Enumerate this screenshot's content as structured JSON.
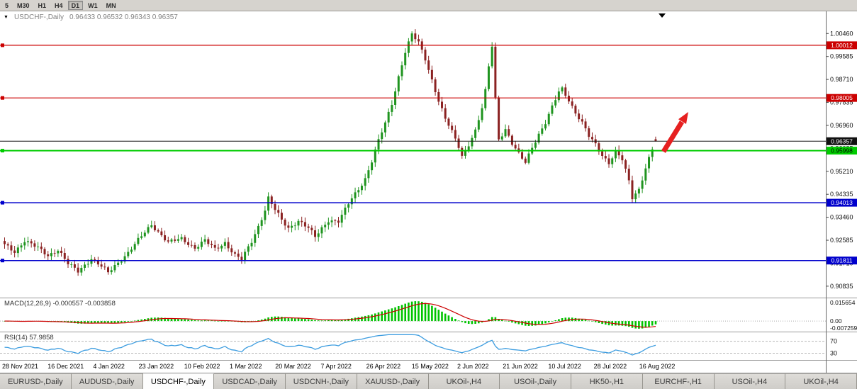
{
  "toolbar": {
    "timeframes": [
      {
        "label": "5",
        "active": false
      },
      {
        "label": "M30",
        "active": false
      },
      {
        "label": "H1",
        "active": false
      },
      {
        "label": "H4",
        "active": false
      },
      {
        "label": "D1",
        "active": true
      },
      {
        "label": "W1",
        "active": false
      },
      {
        "label": "MN",
        "active": false
      }
    ]
  },
  "chart": {
    "symbol": "USDCHF-,Daily",
    "ohlc_text": "0.96433 0.96532 0.96343 0.96357"
  },
  "chart_data": {
    "type": "candlestick",
    "symbol": "USDCHF-,Daily",
    "timeframe": "Daily",
    "last_ohlc": {
      "open": 0.96433,
      "high": 0.96532,
      "low": 0.96343,
      "close": 0.96357
    },
    "total_candles": 196,
    "y_range": [
      0.904,
      1.0125
    ],
    "close_path": [
      [
        0,
        0.924
      ],
      [
        3,
        0.9215
      ],
      [
        6,
        0.9258
      ],
      [
        10,
        0.9228
      ],
      [
        13,
        0.92
      ],
      [
        16,
        0.9224
      ],
      [
        19,
        0.9168
      ],
      [
        22,
        0.914
      ],
      [
        26,
        0.919
      ],
      [
        29,
        0.9158
      ],
      [
        31,
        0.9134
      ],
      [
        34,
        0.9174
      ],
      [
        37,
        0.9212
      ],
      [
        40,
        0.9258
      ],
      [
        44,
        0.9318
      ],
      [
        46,
        0.9292
      ],
      [
        49,
        0.925
      ],
      [
        53,
        0.9264
      ],
      [
        57,
        0.923
      ],
      [
        60,
        0.9257
      ],
      [
        63,
        0.9224
      ],
      [
        66,
        0.925
      ],
      [
        69,
        0.9202
      ],
      [
        71,
        0.9184
      ],
      [
        74,
        0.9254
      ],
      [
        76,
        0.9312
      ],
      [
        78,
        0.9375
      ],
      [
        79,
        0.942
      ],
      [
        81,
        0.9374
      ],
      [
        83,
        0.9334
      ],
      [
        85,
        0.9304
      ],
      [
        88,
        0.9334
      ],
      [
        91,
        0.9304
      ],
      [
        93,
        0.927
      ],
      [
        95,
        0.9304
      ],
      [
        97,
        0.9336
      ],
      [
        100,
        0.933
      ],
      [
        102,
        0.9374
      ],
      [
        104,
        0.9418
      ],
      [
        106,
        0.9454
      ],
      [
        108,
        0.9494
      ],
      [
        110,
        0.956
      ],
      [
        112,
        0.9637
      ],
      [
        114,
        0.9704
      ],
      [
        116,
        0.978
      ],
      [
        118,
        0.9882
      ],
      [
        120,
        0.9977
      ],
      [
        122,
        1.0042
      ],
      [
        124,
        1.001
      ],
      [
        126,
        0.995
      ],
      [
        128,
        0.987
      ],
      [
        130,
        0.979
      ],
      [
        132,
        0.972
      ],
      [
        134,
        0.967
      ],
      [
        136,
        0.9616
      ],
      [
        137,
        0.958
      ],
      [
        139,
        0.9625
      ],
      [
        141,
        0.9675
      ],
      [
        143,
        0.976
      ],
      [
        144,
        0.9825
      ],
      [
        145,
        0.992
      ],
      [
        146,
        1.0
      ],
      [
        147,
        0.98
      ],
      [
        148,
        0.9645
      ],
      [
        150,
        0.9682
      ],
      [
        152,
        0.9625
      ],
      [
        154,
        0.9585
      ],
      [
        156,
        0.9555
      ],
      [
        158,
        0.9615
      ],
      [
        160,
        0.9663
      ],
      [
        162,
        0.9705
      ],
      [
        164,
        0.9764
      ],
      [
        166,
        0.9824
      ],
      [
        167,
        0.9836
      ],
      [
        169,
        0.9794
      ],
      [
        171,
        0.9744
      ],
      [
        173,
        0.9704
      ],
      [
        175,
        0.9654
      ],
      [
        177,
        0.9624
      ],
      [
        179,
        0.9584
      ],
      [
        181,
        0.9554
      ],
      [
        183,
        0.9594
      ],
      [
        185,
        0.9564
      ],
      [
        187,
        0.9484
      ],
      [
        188,
        0.9422
      ],
      [
        190,
        0.9454
      ],
      [
        192,
        0.9534
      ],
      [
        194,
        0.9604
      ],
      [
        195,
        0.9636
      ]
    ],
    "price_axis_ticks": [
      "1.00460",
      "0.99585",
      "0.98710",
      "0.97835",
      "0.96960",
      "0.96085",
      "0.95210",
      "0.94335",
      "0.93460",
      "0.92585",
      "0.91710",
      "0.90835"
    ],
    "x_axis_labels": [
      "28 Nov 2021",
      "16 Dec 2021",
      "4 Jan 2022",
      "23 Jan 2022",
      "10 Feb 2022",
      "1 Mar 2022",
      "20 Mar 2022",
      "7 Apr 2022",
      "26 Apr 2022",
      "15 May 2022",
      "2 Jun 2022",
      "21 Jun 2022",
      "10 Jul 2022",
      "28 Jul 2022",
      "16 Aug 2022"
    ],
    "candle_colors": {
      "up": "#1f941f",
      "down": "#8b2222"
    },
    "hlines": [
      {
        "price": 1.00012,
        "label": "1.00012",
        "color": "#cc0000",
        "text_color": "#ffffff",
        "width": 1.2,
        "handle": true
      },
      {
        "price": 0.98005,
        "label": "0.98005",
        "color": "#cc0000",
        "text_color": "#ffffff",
        "width": 1.2,
        "handle": true
      },
      {
        "price": 0.96357,
        "label": "0.96357",
        "color": "#111111",
        "text_color": "#ffffff",
        "width": 1,
        "handle": false
      },
      {
        "price": 0.95998,
        "label": "0.95998",
        "color": "#00cc00",
        "text_color": "#000000",
        "width": 2,
        "handle": true
      },
      {
        "price": 0.94013,
        "label": "0.94013",
        "color": "#0000cc",
        "text_color": "#ffffff",
        "width": 1.5,
        "handle": true
      },
      {
        "price": 0.91811,
        "label": "0.91811",
        "color": "#0000cc",
        "text_color": "#ffffff",
        "width": 1.5,
        "handle": true
      }
    ],
    "indicators": {
      "macd": {
        "display": "MACD(12,26,9) -0.000557 -0.003858",
        "fast": 12,
        "slow": 26,
        "signal": 9,
        "value_main": -0.000557,
        "value_signal": -0.003858,
        "hist_color": "#00c400",
        "signal_color": "#cc0000",
        "axis_top": "0.015654",
        "axis_zero": "0.00",
        "axis_bottom": "-0.007259"
      },
      "rsi": {
        "display": "RSI(14) 57.9858",
        "period": 14,
        "value": 57.9858,
        "line_color": "#3d9de0",
        "levels": [
          {
            "value": 70,
            "label": "70"
          },
          {
            "value": 30,
            "label": "30"
          }
        ]
      }
    },
    "annotations": [
      {
        "type": "arrow",
        "direction": "up-right",
        "color": "#e62020"
      }
    ]
  },
  "tabs": {
    "items": [
      {
        "label": "EURUSD-,Daily",
        "active": false
      },
      {
        "label": "AUDUSD-,Daily",
        "active": false
      },
      {
        "label": "USDCHF-,Daily",
        "active": true
      },
      {
        "label": "USDCAD-,Daily",
        "active": false
      },
      {
        "label": "USDCNH-,Daily",
        "active": false
      },
      {
        "label": "XAUUSD-,Daily",
        "active": false
      },
      {
        "label": "UKOil-,H4",
        "active": false
      },
      {
        "label": "USOil-,Daily",
        "active": false
      },
      {
        "label": "HK50-,H1",
        "active": false
      },
      {
        "label": "EURCHF-,H1",
        "active": false
      },
      {
        "label": "USOil-,H4",
        "active": false
      },
      {
        "label": "UKOil-,H4",
        "active": false
      }
    ]
  }
}
